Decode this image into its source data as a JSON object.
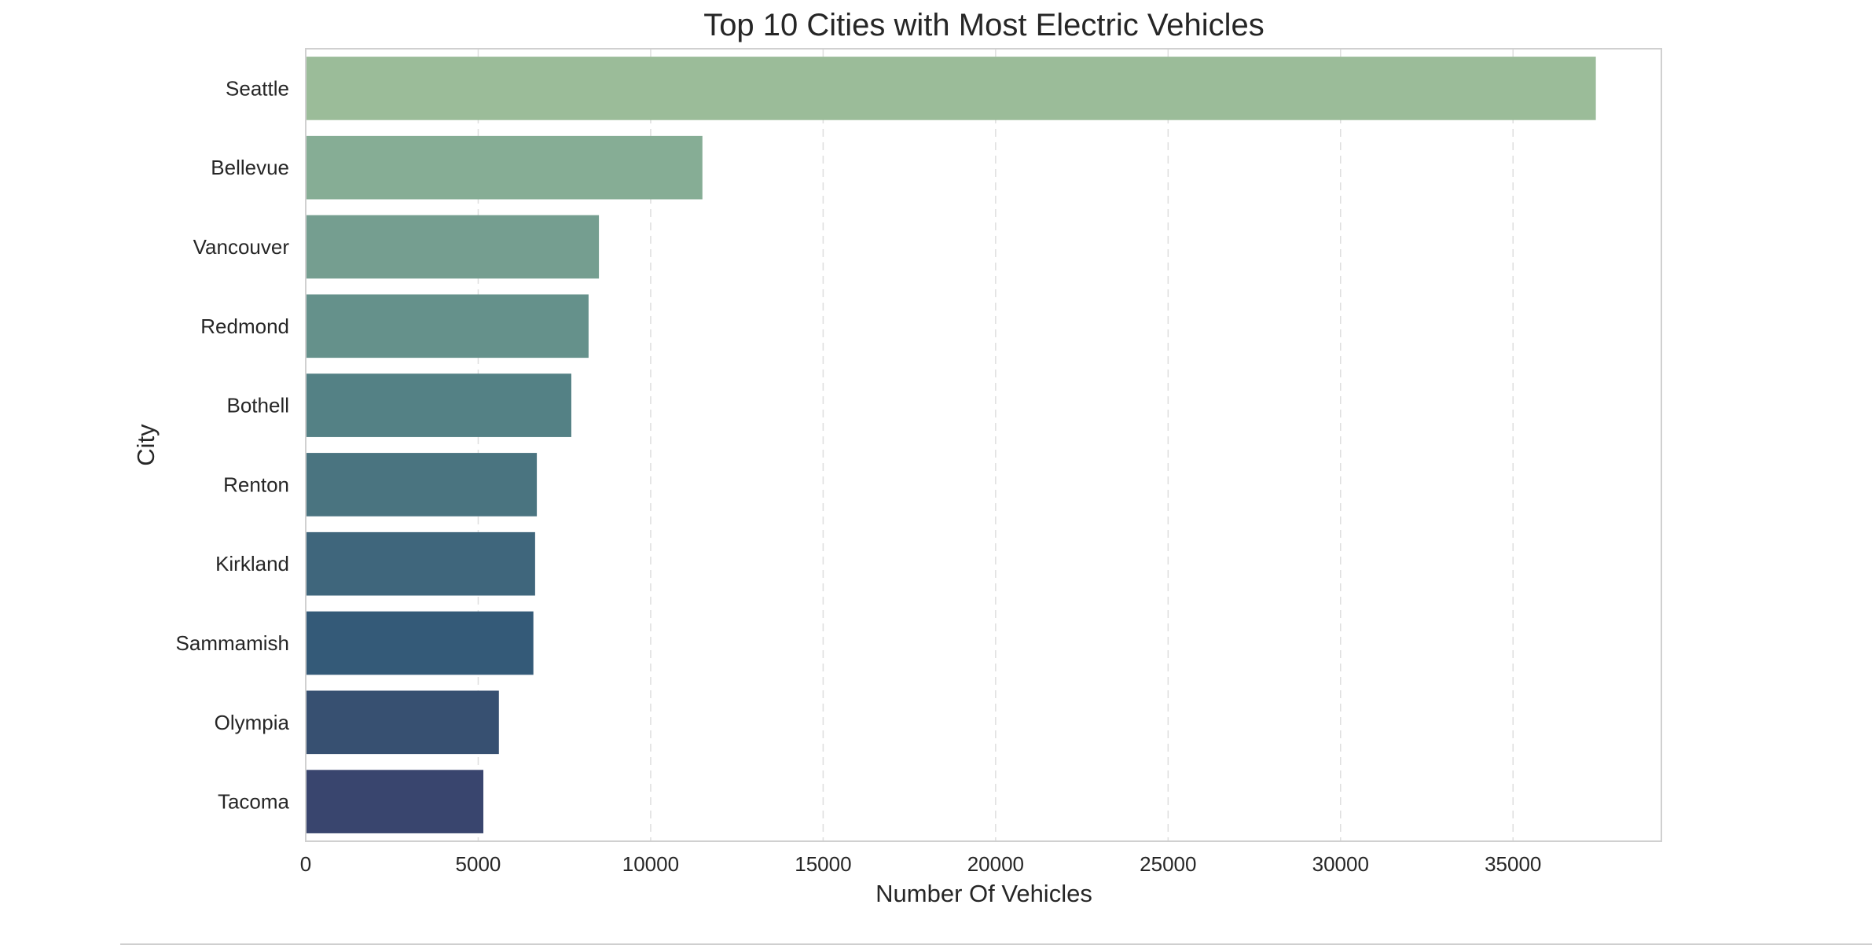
{
  "chart_data": {
    "type": "bar",
    "orientation": "horizontal",
    "title": "Top 10 Cities with Most Electric Vehicles",
    "xlabel": "Number Of Vehicles",
    "ylabel": "City",
    "categories": [
      "Seattle",
      "Bellevue",
      "Vancouver",
      "Redmond",
      "Bothell",
      "Renton",
      "Kirkland",
      "Sammamish",
      "Olympia",
      "Tacoma"
    ],
    "values": [
      37400,
      11500,
      8500,
      8200,
      7700,
      6700,
      6650,
      6600,
      5600,
      5150
    ],
    "xlim": [
      0,
      39300
    ],
    "xticks": [
      0,
      5000,
      10000,
      15000,
      20000,
      25000,
      30000,
      35000
    ],
    "grid": "vertical-dashed",
    "colors": [
      "#9bbc99",
      "#86ad95",
      "#759e90",
      "#65918b",
      "#548185",
      "#4a7480",
      "#3f667c",
      "#345a78",
      "#375071",
      "#39456e"
    ]
  }
}
